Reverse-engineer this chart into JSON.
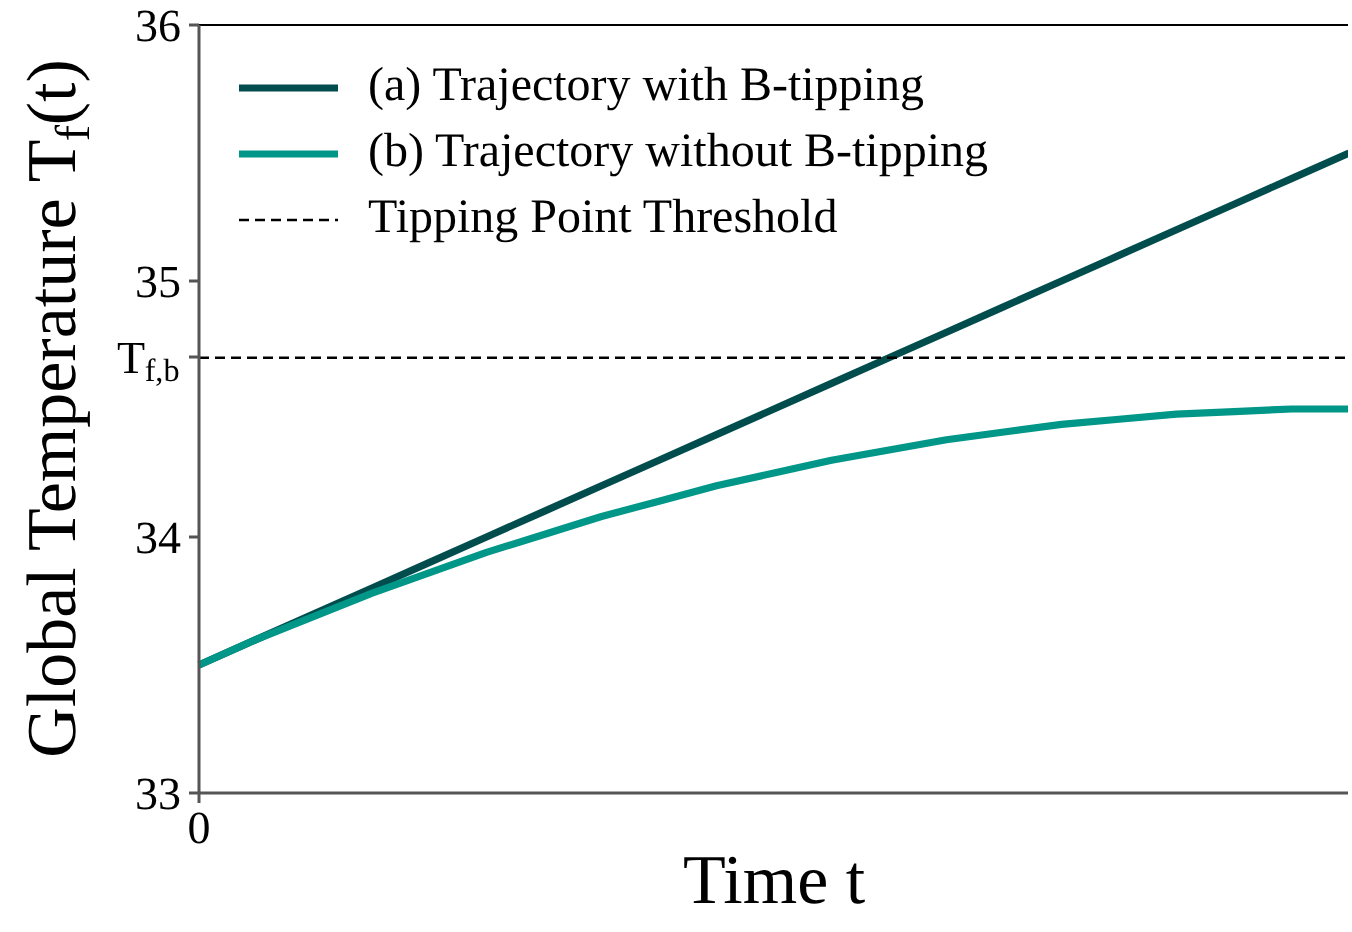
{
  "chart_data": {
    "type": "line",
    "xlabel": "Time t",
    "ylabel": "Global Temperature T$_{f}$(t)",
    "categories": [
      "0",
      null,
      null,
      null,
      null,
      null,
      null,
      null,
      null,
      null,
      null,
      null,
      null,
      null,
      null,
      null,
      null,
      null,
      null,
      null,
      null
    ],
    "series": [
      {
        "name": "(a) Trajectory with B-tipping",
        "color": "#014d4e",
        "values": [
          33.5,
          33.6,
          33.7,
          33.8,
          33.9,
          34.0,
          34.1,
          34.2,
          34.3,
          34.4,
          34.5,
          34.6,
          34.7,
          34.8,
          34.9,
          35.0,
          35.1,
          35.2,
          35.3,
          35.4,
          35.5
        ]
      },
      {
        "name": "(b) Trajectory without B-tipping",
        "color": "#009688",
        "values": [
          33.5,
          33.6,
          33.69,
          33.78,
          33.86,
          33.94,
          34.01,
          34.08,
          34.14,
          34.2,
          34.25,
          34.3,
          34.34,
          34.38,
          34.41,
          34.44,
          34.46,
          34.48,
          34.49,
          34.5,
          34.5
        ]
      }
    ],
    "ylim": [
      33,
      36
    ],
    "yticks": [
      33,
      34,
      {
        "value": 34.7,
        "label": "T$_{f,b}$"
      },
      35,
      36
    ],
    "ref_lines": [
      {
        "axis": "y",
        "value": 34.7,
        "label": "Tipping Point Threshold",
        "color": "#000000",
        "line_style": "dashed"
      }
    ],
    "legend": "top left"
  }
}
